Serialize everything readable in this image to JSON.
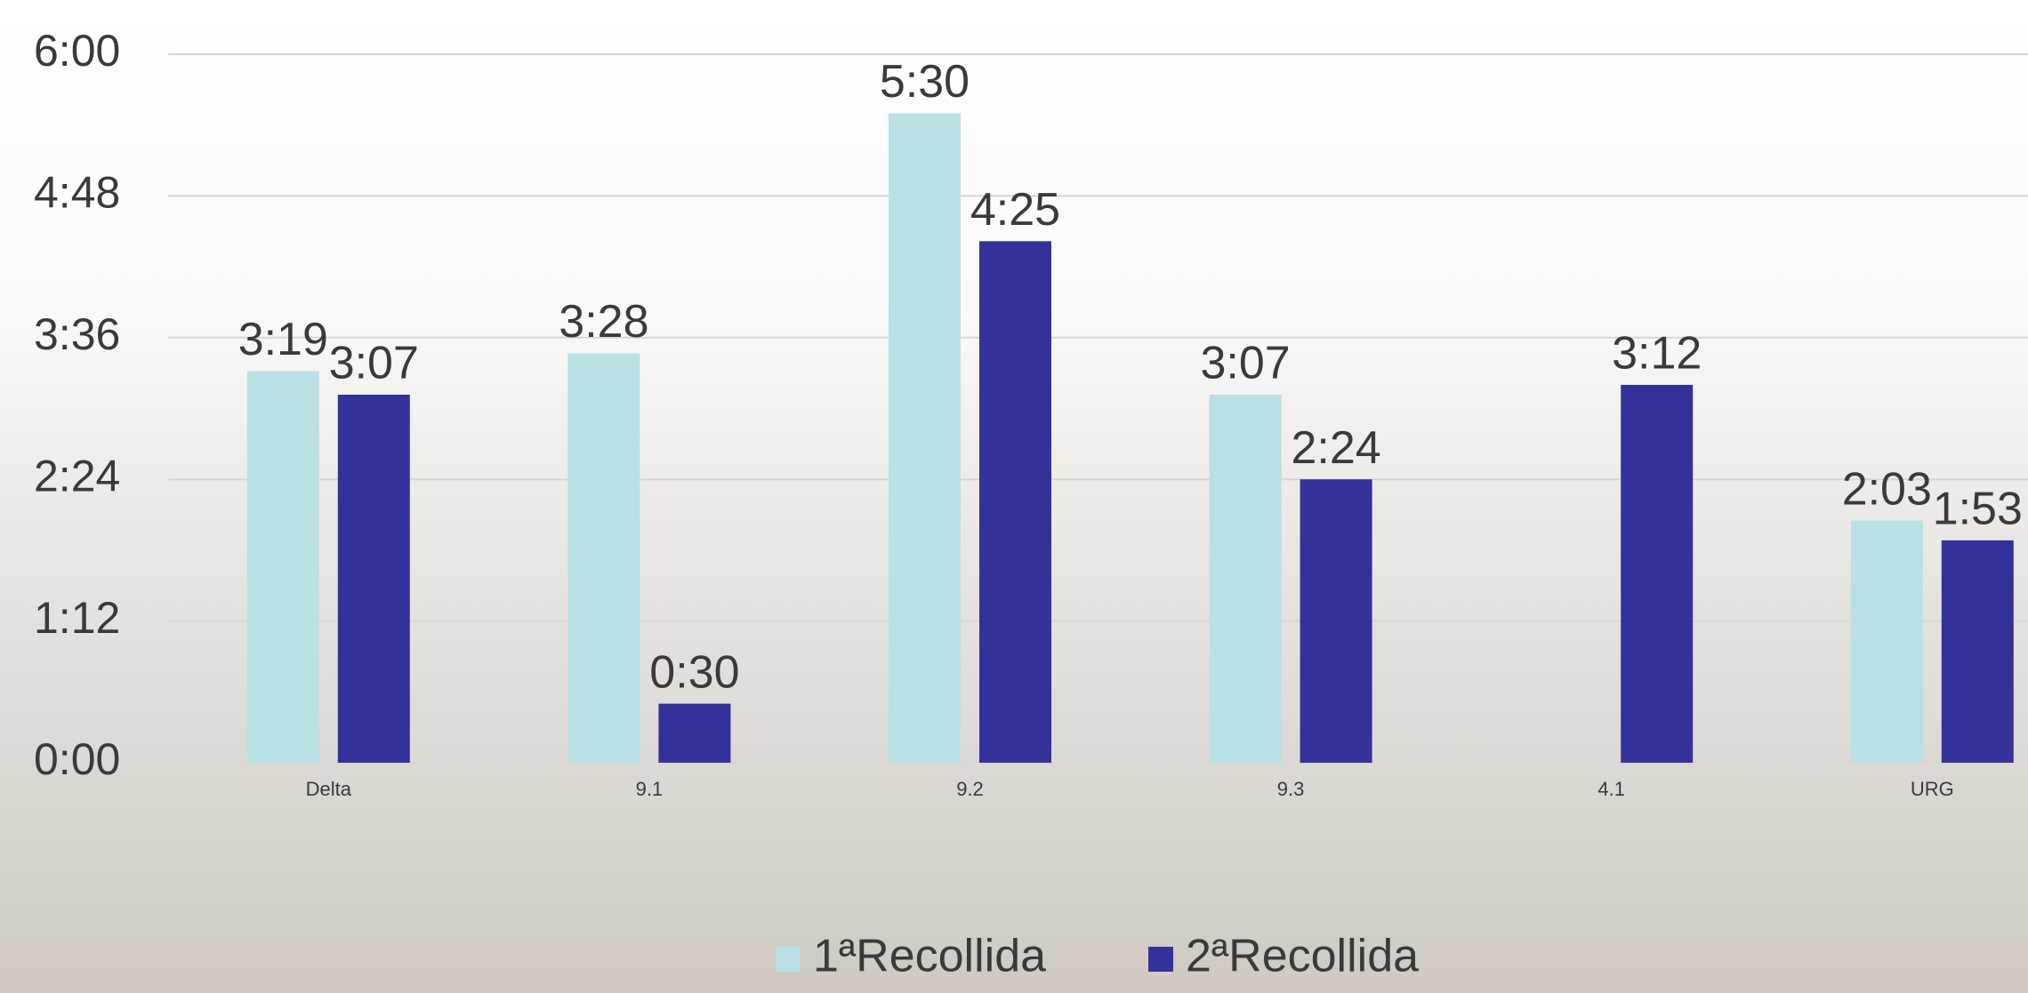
{
  "chart_data": {
    "type": "bar",
    "categories": [
      "Delta",
      "9.1",
      "9.2",
      "9.3",
      "4.1",
      "URG"
    ],
    "series": [
      {
        "name": "1ªRecollida",
        "color": "#b9e0e3",
        "values": [
          199,
          208,
          330,
          187,
          null,
          123
        ],
        "value_labels": [
          "3:19",
          "3:28",
          "5:30",
          "3:07",
          null,
          "2:03"
        ]
      },
      {
        "name": "2ªRecollida",
        "color": "#35319b",
        "values": [
          187,
          30,
          265,
          144,
          192,
          113
        ],
        "value_labels": [
          "3:07",
          "0:30",
          "4:25",
          "2:24",
          "3:12",
          "1:53"
        ]
      }
    ],
    "ylim": [
      0,
      360
    ],
    "yticks": [
      {
        "value": 0,
        "label": "0:00"
      },
      {
        "value": 72,
        "label": "1:12"
      },
      {
        "value": 144,
        "label": "2:24"
      },
      {
        "value": 216,
        "label": "3:36"
      },
      {
        "value": 288,
        "label": "4:48"
      },
      {
        "value": 360,
        "label": "6:00"
      }
    ],
    "grid": true,
    "legend": "bottom"
  }
}
